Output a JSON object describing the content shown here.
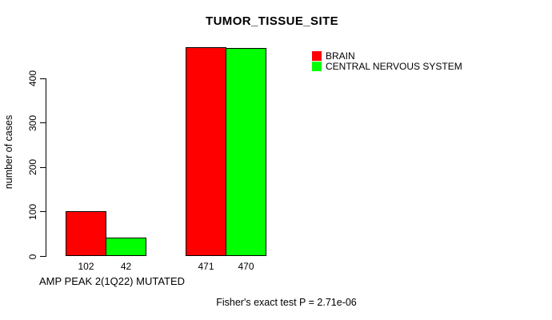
{
  "chart_data": {
    "type": "bar",
    "title": "TUMOR_TISSUE_SITE",
    "ylabel": "number of cases",
    "xlabel": "AMP PEAK 2(1Q22) MUTATED",
    "categories": [
      "AMP PEAK 2(1Q22) MUTATED",
      ""
    ],
    "series": [
      {
        "name": "BRAIN",
        "color": "#ff0000",
        "values": [
          102,
          471
        ]
      },
      {
        "name": "CENTRAL NERVOUS SYSTEM",
        "color": "#00ff00",
        "values": [
          42,
          470
        ]
      }
    ],
    "bar_value_labels": [
      [
        "102",
        "42"
      ],
      [
        "471",
        "470"
      ]
    ],
    "yticks": [
      0,
      100,
      200,
      300,
      400
    ],
    "ylim": [
      0,
      480
    ],
    "grid": false,
    "legend_position": "top-right",
    "footnote": "Fisher's exact test P = 2.71e-06"
  },
  "colors": {
    "background": "#ffffff",
    "axis": "#000000",
    "text": "#000000",
    "bar_border": "#000000",
    "brain": "#ff0000",
    "cns": "#00ff00"
  }
}
